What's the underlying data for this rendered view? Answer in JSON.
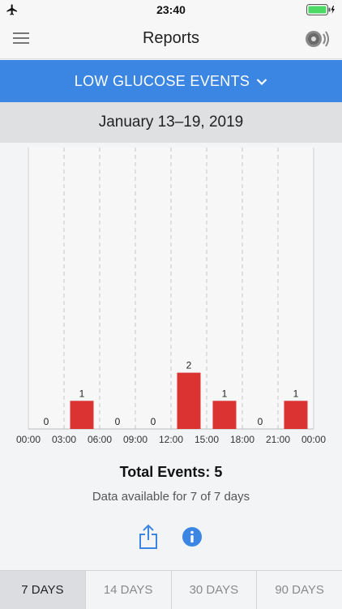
{
  "status_bar": {
    "time": "23:40",
    "icons": [
      "airplane-icon",
      "battery-icon"
    ]
  },
  "nav": {
    "title": "Reports",
    "left_icon": "menu-icon",
    "right_icon": "sensor-icon"
  },
  "report_selector": {
    "label": "LOW GLUCOSE EVENTS"
  },
  "date_range": "January 13–19, 2019",
  "chart_data": {
    "type": "bar",
    "categories": [
      "00:00-03:00",
      "03:00-06:00",
      "06:00-09:00",
      "09:00-12:00",
      "12:00-15:00",
      "15:00-18:00",
      "18:00-21:00",
      "21:00-00:00"
    ],
    "x_tick_labels": [
      "00:00",
      "03:00",
      "06:00",
      "09:00",
      "12:00",
      "15:00",
      "18:00",
      "21:00",
      "00:00"
    ],
    "values": [
      0,
      1,
      0,
      0,
      2,
      1,
      0,
      1
    ],
    "data_labels": [
      "0",
      "1",
      "0",
      "0",
      "2",
      "1",
      "0",
      "1"
    ],
    "title": "",
    "xlabel": "",
    "ylabel": "",
    "ylim": [
      0,
      10
    ],
    "bar_color": "#db3232",
    "grid": "vertical dashed"
  },
  "summary": {
    "total_label": "Total Events: 5",
    "availability": "Data available for 7 of 7 days"
  },
  "actions": {
    "share_icon": "share-icon",
    "info_icon": "info-icon"
  },
  "tabs": [
    {
      "label": "7 DAYS",
      "active": true
    },
    {
      "label": "14 DAYS",
      "active": false
    },
    {
      "label": "30 DAYS",
      "active": false
    },
    {
      "label": "90 DAYS",
      "active": false
    }
  ],
  "colors": {
    "accent": "#3b86e2",
    "bar": "#db3232"
  }
}
